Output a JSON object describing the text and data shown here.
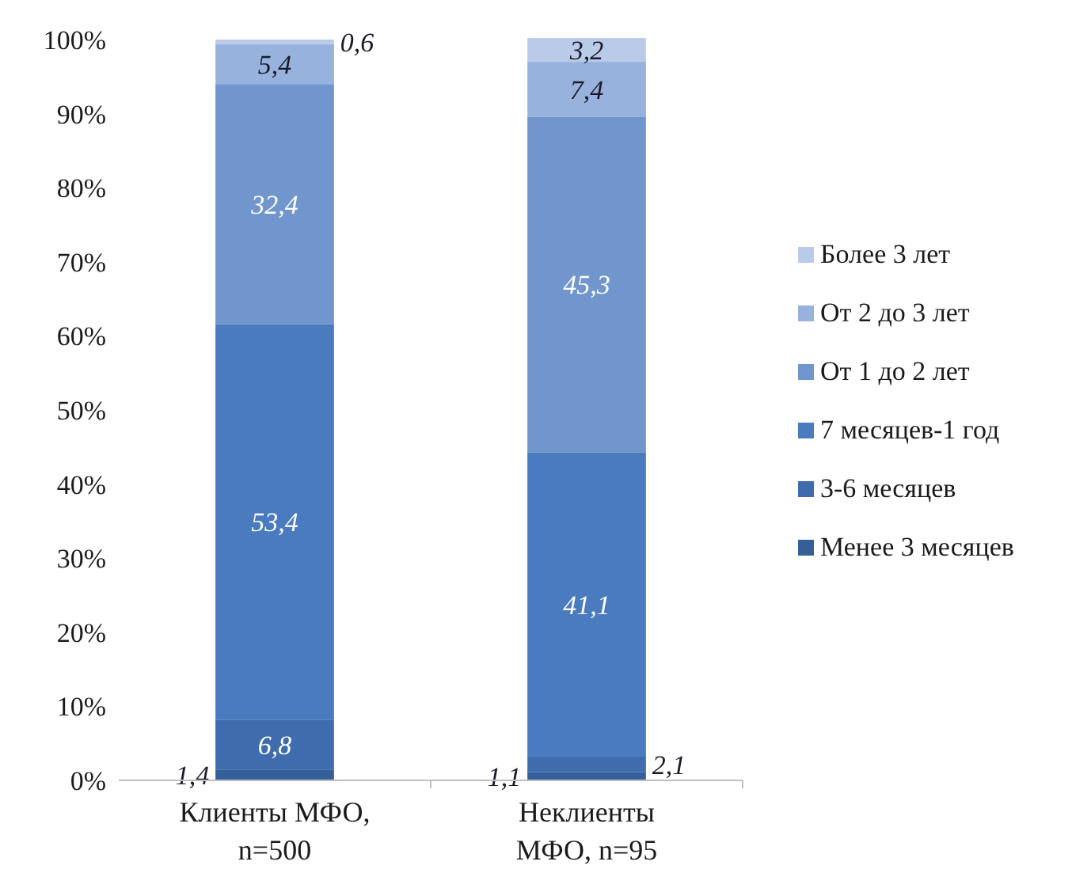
{
  "chart_data": {
    "type": "bar",
    "stacked": true,
    "categories": [
      "Клиенты МФО, n=500",
      "Неклиенты МФО, n=95"
    ],
    "series": [
      {
        "name": "Менее 3 месяцев",
        "color": "#345f99",
        "values": [
          1.4,
          1.1
        ],
        "value_labels": [
          "1,4",
          "1,1"
        ]
      },
      {
        "name": "3-6 месяцев",
        "color": "#3e6cad",
        "values": [
          6.8,
          2.1
        ],
        "value_labels": [
          "6,8",
          "2,1"
        ]
      },
      {
        "name": "7 месяцев-1 год",
        "color": "#4a7bbf",
        "values": [
          53.4,
          41.1
        ],
        "value_labels": [
          "53,4",
          "41,1"
        ]
      },
      {
        "name": "От 1 до 2 лет",
        "color": "#7196cd",
        "values": [
          32.4,
          45.3
        ],
        "value_labels": [
          "32,4",
          "45,3"
        ]
      },
      {
        "name": "От 2 до 3 лет",
        "color": "#97b2dc",
        "values": [
          5.4,
          7.4
        ],
        "value_labels": [
          "5,4",
          "7,4"
        ]
      },
      {
        "name": "Более 3 лет",
        "color": "#b9cbe8",
        "values": [
          0.6,
          3.2
        ],
        "value_labels": [
          "0,6",
          "3,2"
        ]
      }
    ],
    "ylim": [
      0,
      100
    ],
    "yticks": [
      {
        "value": 0,
        "label": "0%"
      },
      {
        "value": 10,
        "label": "10%"
      },
      {
        "value": 20,
        "label": "20%"
      },
      {
        "value": 30,
        "label": "30%"
      },
      {
        "value": 40,
        "label": "40%"
      },
      {
        "value": 50,
        "label": "50%"
      },
      {
        "value": 60,
        "label": "60%"
      },
      {
        "value": 70,
        "label": "70%"
      },
      {
        "value": 80,
        "label": "80%"
      },
      {
        "value": 90,
        "label": "90%"
      },
      {
        "value": 100,
        "label": "100%"
      }
    ],
    "legend": "right"
  }
}
